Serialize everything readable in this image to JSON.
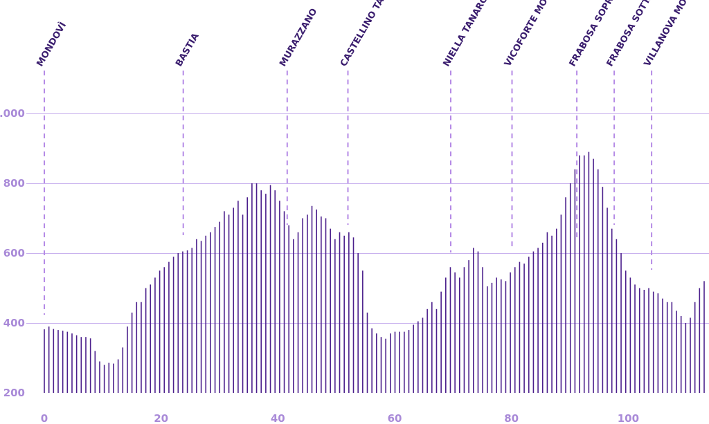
{
  "chart_data": {
    "type": "bar",
    "title": "",
    "xlabel": "",
    "ylabel": "",
    "xlim": [
      0,
      113
    ],
    "ylim": [
      200,
      1000
    ],
    "x_ticks": [
      0,
      20,
      40,
      60,
      80,
      100
    ],
    "y_ticks": [
      {
        "value": 200,
        "label": "200"
      },
      {
        "value": 400,
        "label": "400"
      },
      {
        "value": 600,
        "label": "600"
      },
      {
        "value": 800,
        "label": "800"
      },
      {
        "value": 1000,
        "label": "1.000"
      }
    ],
    "grid": true,
    "colors": {
      "bars": "#4b1f8c",
      "grid": "#c9b2ee",
      "markers": "#b58ae6",
      "ticks": "#a98ad8",
      "labels": "#3a1d6e"
    },
    "series": [
      {
        "values": [
          382,
          390,
          383,
          380,
          378,
          375,
          370,
          365,
          360,
          360,
          356,
          320,
          290,
          280,
          286,
          284,
          296,
          330,
          390,
          430,
          460,
          460,
          500,
          510,
          530,
          550,
          560,
          575,
          590,
          600,
          605,
          608,
          615,
          640,
          635,
          650,
          660,
          675,
          690,
          720,
          710,
          730,
          750,
          710,
          760,
          800,
          800,
          780,
          770,
          795,
          780,
          750,
          720,
          680,
          640,
          660,
          700,
          710,
          735,
          725,
          705,
          700,
          670,
          640,
          660,
          650,
          660,
          645,
          600,
          550,
          430,
          385,
          370,
          360,
          355,
          370,
          375,
          375,
          375,
          380,
          395,
          405,
          415,
          440,
          460,
          440,
          490,
          530,
          560,
          545,
          530,
          560,
          580,
          615,
          605,
          560,
          505,
          515,
          530,
          525,
          520,
          545,
          560,
          575,
          570,
          590,
          605,
          615,
          630,
          660,
          650,
          670,
          710,
          760,
          800,
          840,
          880,
          880,
          890,
          870,
          840,
          790,
          730,
          670,
          640,
          600,
          550,
          530,
          510,
          500,
          495,
          500,
          490,
          485,
          470,
          460,
          460,
          435,
          420,
          400,
          415,
          460,
          500,
          520
        ]
      }
    ],
    "towns": [
      {
        "name": "MONDOVÌ",
        "km": 0
      },
      {
        "name": "BASTIA",
        "km": 23.8
      },
      {
        "name": "MURAZZANO",
        "km": 41.6
      },
      {
        "name": "CASTELLINO TANARO",
        "km": 52
      },
      {
        "name": "NIELLA TANARO",
        "km": 69.6
      },
      {
        "name": "VICOFORTE MONDOVÌ",
        "km": 80.1
      },
      {
        "name": "FRABOSA SOPRANA",
        "km": 91.2
      },
      {
        "name": "FRABOSA SOTTANA",
        "km": 97.6
      },
      {
        "name": "VILLANOVA MONDOVÌ",
        "km": 104
      }
    ]
  }
}
